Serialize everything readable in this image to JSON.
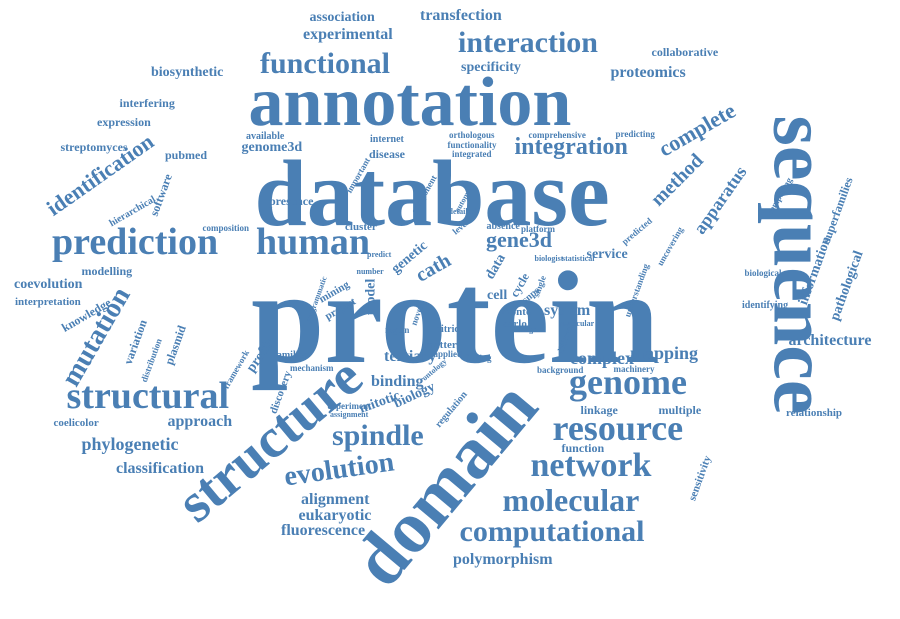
{
  "word_cloud": {
    "color": "#4a7fb4",
    "words": [
      {
        "text": "protein"
      },
      {
        "text": "database"
      },
      {
        "text": "annotation"
      },
      {
        "text": "sequence"
      },
      {
        "text": "domain"
      },
      {
        "text": "structure"
      },
      {
        "text": "prediction"
      },
      {
        "text": "human"
      },
      {
        "text": "genome"
      },
      {
        "text": "resource"
      },
      {
        "text": "structural"
      },
      {
        "text": "network"
      },
      {
        "text": "molecular"
      },
      {
        "text": "computational"
      },
      {
        "text": "functional"
      },
      {
        "text": "interaction"
      },
      {
        "text": "spindle"
      },
      {
        "text": "evolution"
      },
      {
        "text": "integration"
      },
      {
        "text": "mutation"
      },
      {
        "text": "identification"
      },
      {
        "text": "gene3d"
      },
      {
        "text": "architecture"
      },
      {
        "text": "mapping"
      },
      {
        "text": "complex"
      },
      {
        "text": "method"
      },
      {
        "text": "complete"
      },
      {
        "text": "apparatus"
      },
      {
        "text": "binding"
      },
      {
        "text": "tertiary"
      },
      {
        "text": "phylogenetic"
      },
      {
        "text": "classification"
      },
      {
        "text": "approach"
      },
      {
        "text": "alignment"
      },
      {
        "text": "eukaryotic"
      },
      {
        "text": "fluorescence"
      },
      {
        "text": "polymorphism"
      },
      {
        "text": "experimental"
      },
      {
        "text": "association"
      },
      {
        "text": "transfection"
      },
      {
        "text": "proteomics"
      },
      {
        "text": "specificity"
      },
      {
        "text": "collaborative"
      },
      {
        "text": "biosynthetic"
      },
      {
        "text": "interfering"
      },
      {
        "text": "expression"
      },
      {
        "text": "streptomyces"
      },
      {
        "text": "pubmed"
      },
      {
        "text": "software"
      },
      {
        "text": "hierarchical"
      },
      {
        "text": "genome3d"
      },
      {
        "text": "available"
      },
      {
        "text": "internet"
      },
      {
        "text": "disease"
      },
      {
        "text": "comprehensive"
      },
      {
        "text": "predicting"
      },
      {
        "text": "orthologous"
      },
      {
        "text": "functionality"
      },
      {
        "text": "integrated"
      },
      {
        "text": "important"
      },
      {
        "text": "presence"
      },
      {
        "text": "cluster"
      },
      {
        "text": "composition"
      },
      {
        "text": "component"
      },
      {
        "text": "coevolution"
      },
      {
        "text": "interpretation"
      },
      {
        "text": "modelling"
      },
      {
        "text": "knowledge"
      },
      {
        "text": "variation"
      },
      {
        "text": "distribution"
      },
      {
        "text": "plasmid"
      },
      {
        "text": "coelicolor"
      },
      {
        "text": "profile"
      },
      {
        "text": "families"
      },
      {
        "text": "framework"
      },
      {
        "text": "mechanism"
      },
      {
        "text": "discovery"
      },
      {
        "text": "project"
      },
      {
        "text": "mining"
      },
      {
        "text": "model"
      },
      {
        "text": "cath"
      },
      {
        "text": "genetic"
      },
      {
        "text": "mitotic"
      },
      {
        "text": "biology"
      },
      {
        "text": "regulation"
      },
      {
        "text": "nitric"
      },
      {
        "text": "matter"
      },
      {
        "text": "applied"
      },
      {
        "text": "finding"
      },
      {
        "text": "system"
      },
      {
        "text": "cell"
      },
      {
        "text": "data"
      },
      {
        "text": "monte"
      },
      {
        "text": "carlo"
      },
      {
        "text": "single"
      },
      {
        "text": "absence"
      },
      {
        "text": "platform"
      },
      {
        "text": "service"
      },
      {
        "text": "predicted"
      },
      {
        "text": "uncovering"
      },
      {
        "text": "different"
      },
      {
        "text": "understanding"
      },
      {
        "text": "background"
      },
      {
        "text": "machinery"
      },
      {
        "text": "function"
      },
      {
        "text": "linkage"
      },
      {
        "text": "multiple"
      },
      {
        "text": "sensitivity"
      },
      {
        "text": "relationship"
      },
      {
        "text": "identifying"
      },
      {
        "text": "pathological"
      },
      {
        "text": "information"
      },
      {
        "text": "biological"
      },
      {
        "text": "superfamilies"
      },
      {
        "text": "comparing"
      },
      {
        "text": "region"
      },
      {
        "text": "novel"
      },
      {
        "text": "level"
      },
      {
        "text": "experiment"
      },
      {
        "text": "assignment"
      },
      {
        "text": "particular"
      },
      {
        "text": "statistical"
      },
      {
        "text": "ontology"
      },
      {
        "text": "biologist"
      },
      {
        "text": "cycle"
      },
      {
        "text": "snps"
      },
      {
        "text": "automate"
      },
      {
        "text": "detailed"
      },
      {
        "text": "predict"
      },
      {
        "text": "programmatic"
      },
      {
        "text": "number"
      },
      {
        "text": "usage"
      }
    ]
  }
}
